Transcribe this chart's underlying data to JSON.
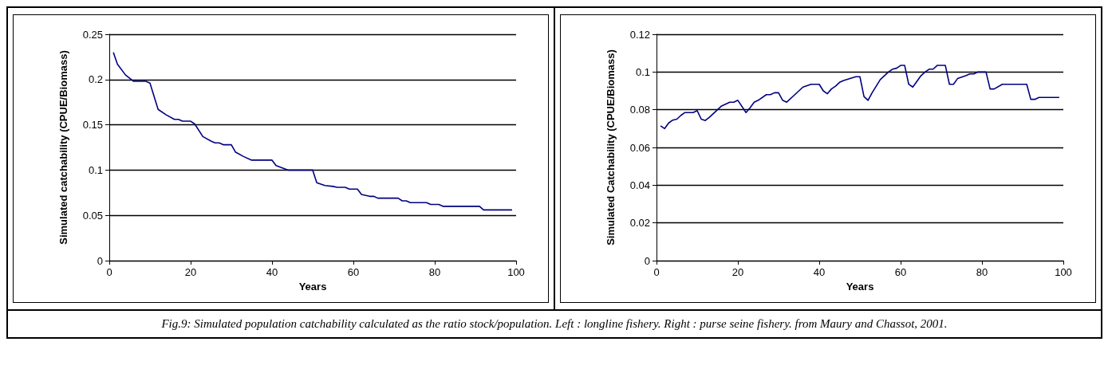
{
  "chart_data": [
    {
      "type": "line",
      "ylabel": "Simulated catchability (CPUE/Biomass)",
      "xlabel": "Years",
      "xlim": [
        0,
        100
      ],
      "xticks": [
        0,
        20,
        40,
        60,
        80,
        100
      ],
      "ylim": [
        0,
        0.25
      ],
      "yticks": [
        0,
        0.05,
        0.1,
        0.15,
        0.2,
        0.25
      ],
      "grid": "y",
      "marker": "none",
      "line_style": "solid",
      "annotations": [
        "Fig.9: Simulated population catchability calculated as the ratio stock/population. Left : longline fishery. Right : purse seine fishery. from Maury and Chassot, 2001."
      ],
      "series": [
        {
          "color": "#000080",
          "x": [
            1,
            2,
            4,
            6,
            9,
            10,
            12,
            14,
            16,
            17,
            18,
            20,
            21,
            23,
            25,
            26,
            27,
            28,
            30,
            31,
            33,
            35,
            40,
            41,
            44,
            50,
            51,
            53,
            55,
            56,
            58,
            59,
            61,
            62,
            64,
            65,
            66,
            71,
            72,
            73,
            74,
            78,
            79,
            81,
            82,
            91,
            92,
            99
          ],
          "values": [
            0.23,
            0.217,
            0.205,
            0.198,
            0.198,
            0.196,
            0.167,
            0.161,
            0.156,
            0.156,
            0.154,
            0.154,
            0.151,
            0.137,
            0.132,
            0.13,
            0.13,
            0.128,
            0.128,
            0.12,
            0.115,
            0.111,
            0.111,
            0.105,
            0.1,
            0.1,
            0.086,
            0.083,
            0.082,
            0.081,
            0.081,
            0.079,
            0.079,
            0.073,
            0.071,
            0.071,
            0.069,
            0.069,
            0.066,
            0.066,
            0.064,
            0.064,
            0.062,
            0.062,
            0.06,
            0.06,
            0.056,
            0.056
          ]
        }
      ]
    },
    {
      "type": "line",
      "ylabel": "Simulated Catchability (CPUE/Biomass)",
      "xlabel": "Years",
      "xlim": [
        0,
        100
      ],
      "xticks": [
        0,
        20,
        40,
        60,
        80,
        100
      ],
      "ylim": [
        0,
        0.12
      ],
      "yticks": [
        0,
        0.02,
        0.04,
        0.06,
        0.08,
        0.1,
        0.12
      ],
      "grid": "y",
      "marker": "none",
      "line_style": "solid",
      "series": [
        {
          "color": "#000080",
          "x": [
            1,
            2,
            3,
            4,
            5,
            6,
            7,
            9,
            10,
            11,
            12,
            13,
            15,
            16,
            18,
            19,
            20,
            22,
            23,
            24,
            25,
            27,
            28,
            29,
            30,
            31,
            32,
            34,
            35,
            36,
            38,
            40,
            41,
            42,
            43,
            44,
            45,
            46,
            49,
            50,
            51,
            52,
            53,
            55,
            56,
            57,
            58,
            59,
            60,
            61,
            62,
            63,
            65,
            66,
            67,
            68,
            69,
            71,
            72,
            73,
            74,
            76,
            77,
            78,
            79,
            81,
            82,
            83,
            85,
            91,
            92,
            93,
            94,
            99
          ],
          "values": [
            0.0715,
            0.07,
            0.073,
            0.0745,
            0.075,
            0.077,
            0.0785,
            0.0785,
            0.0795,
            0.075,
            0.0743,
            0.076,
            0.08,
            0.082,
            0.084,
            0.084,
            0.085,
            0.0785,
            0.081,
            0.084,
            0.085,
            0.088,
            0.088,
            0.089,
            0.089,
            0.085,
            0.084,
            0.088,
            0.09,
            0.092,
            0.0935,
            0.0935,
            0.09,
            0.0885,
            0.091,
            0.0925,
            0.0945,
            0.0955,
            0.0975,
            0.0975,
            0.087,
            0.085,
            0.089,
            0.096,
            0.098,
            0.1,
            0.1015,
            0.102,
            0.1035,
            0.1035,
            0.0935,
            0.092,
            0.098,
            0.1,
            0.1015,
            0.1015,
            0.1035,
            0.1035,
            0.0935,
            0.0935,
            0.0965,
            0.098,
            0.099,
            0.099,
            0.1,
            0.1,
            0.091,
            0.091,
            0.0935,
            0.0935,
            0.0855,
            0.0855,
            0.0865,
            0.0865
          ]
        }
      ]
    }
  ]
}
